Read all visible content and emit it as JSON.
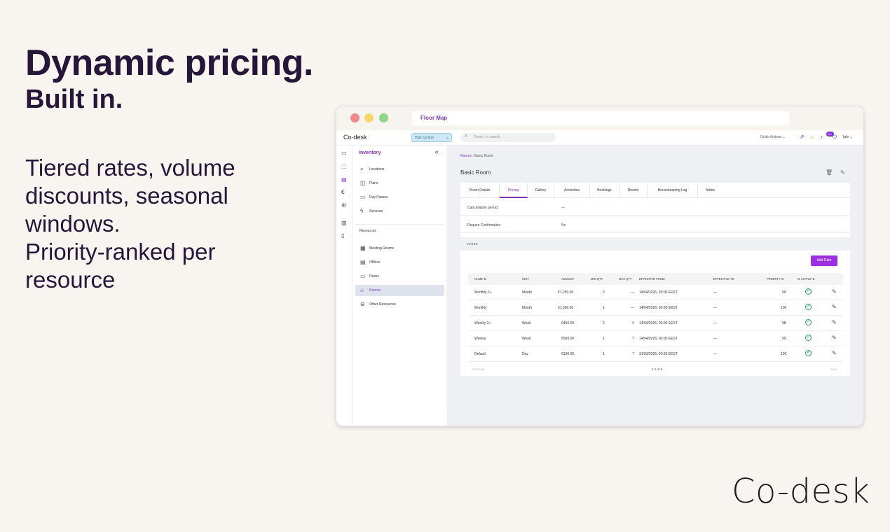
{
  "hero": {
    "title": "Dynamic pricing.",
    "subtitle": "Built in.",
    "body_line1": "Tiered rates, volume discounts, seasonal windows.",
    "body_line2": "Priority-ranked per resource"
  },
  "brand": "Co-desk",
  "window": {
    "address": "Floor Map"
  },
  "topbar": {
    "logo": "Co-desk",
    "hub": "Hub Central",
    "search_placeholder": "Press / to search",
    "quick_actions": "Quick Actions",
    "notifications_badge": "99+",
    "user": "Iple"
  },
  "sidebar": {
    "heading": "Inventory",
    "items_top": [
      {
        "label": "Locations",
        "icon": "location-icon"
      },
      {
        "label": "Plans",
        "icon": "bag-icon"
      },
      {
        "label": "Day Passes",
        "icon": "ticket-icon"
      },
      {
        "label": "Services",
        "icon": "bolt-icon"
      }
    ],
    "group_label": "Resources",
    "items_resources": [
      {
        "label": "Meeting Rooms",
        "icon": "grid-icon"
      },
      {
        "label": "Offices",
        "icon": "calendar-icon"
      },
      {
        "label": "Desks",
        "icon": "monitor-icon"
      },
      {
        "label": "Rooms",
        "icon": "home-icon"
      },
      {
        "label": "Other Resources",
        "icon": "more-icon"
      }
    ]
  },
  "main": {
    "breadcrumb_root": "Rooms",
    "breadcrumb_current": "Basic Room",
    "page_title": "Basic Room",
    "tabs": [
      "Room Details",
      "Pricing",
      "Gallery",
      "Amenities",
      "Bookings",
      "Rooms",
      "Housekeeping Log",
      "Notes"
    ],
    "active_tab": "Pricing",
    "fields": [
      {
        "label": "Cancellation period",
        "value": "—"
      },
      {
        "label": "Require Confirmation",
        "value": "No"
      }
    ],
    "rates_heading": "RATES",
    "add_rate_label": "Add Rate",
    "columns": [
      "NAME",
      "UNIT",
      "AMOUNT",
      "MIN QTY",
      "MAX QTY",
      "EFFECTIVE FROM",
      "EFFECTIVE TO",
      "PRIORITY",
      "IS ACTIVE"
    ],
    "rows": [
      {
        "name": "Monthly 2+",
        "unit": "Month",
        "amount": "€1,250.00",
        "min": "2",
        "max": "—",
        "from": "14/04/2026, 00:00 EEST",
        "to": "—",
        "priority": "99"
      },
      {
        "name": "Monthly",
        "unit": "Month",
        "amount": "€1,500.00",
        "min": "1",
        "max": "—",
        "from": "14/04/2026, 00:00 EEST",
        "to": "—",
        "priority": "100"
      },
      {
        "name": "Weekly 2+",
        "unit": "Week",
        "amount": "€450.00",
        "min": "2",
        "max": "4",
        "from": "14/04/2026, 00:00 EEST",
        "to": "—",
        "priority": "98"
      },
      {
        "name": "Weekly",
        "unit": "Week",
        "amount": "€500.00",
        "min": "1",
        "max": "7",
        "from": "14/04/2026, 00:00 EEST",
        "to": "—",
        "priority": "99"
      },
      {
        "name": "Default",
        "unit": "Day",
        "amount": "€100.00",
        "min": "1",
        "max": "7",
        "from": "31/03/2026, 00:00 EEST",
        "to": "—",
        "priority": "100"
      }
    ],
    "pager": {
      "prev": "Previous",
      "status": "1-5 of 5",
      "next": "Next"
    }
  },
  "colors": {
    "accent": "#7b2fb5",
    "button": "#9b30e0",
    "active_green": "#19a35a"
  }
}
